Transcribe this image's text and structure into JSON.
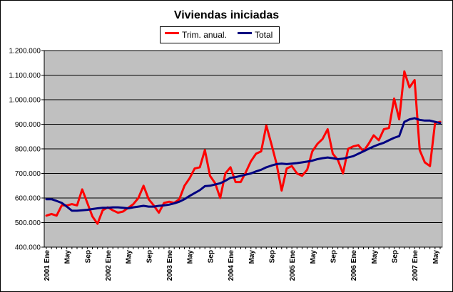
{
  "chart_data": {
    "type": "line",
    "title": "Viviendas iniciadas",
    "xlabel": "",
    "ylabel": "",
    "ylim": [
      400000,
      1200000
    ],
    "yticks": [
      "400.000",
      "500.000",
      "600.000",
      "700.000",
      "800.000",
      "900.000",
      "1.000.000",
      "1.100.000",
      "1.200.000"
    ],
    "ytick_values": [
      400000,
      500000,
      600000,
      700000,
      800000,
      900000,
      1000000,
      1100000,
      1200000
    ],
    "x_start": "2001-01",
    "x_count": 78,
    "x_tick_labels": [
      {
        "index": 0,
        "label": "2001 Ene"
      },
      {
        "index": 4,
        "label": "May"
      },
      {
        "index": 8,
        "label": "Sep"
      },
      {
        "index": 12,
        "label": "2002 Ene"
      },
      {
        "index": 16,
        "label": "May"
      },
      {
        "index": 20,
        "label": "Sep"
      },
      {
        "index": 24,
        "label": "2003 Ene"
      },
      {
        "index": 28,
        "label": "May"
      },
      {
        "index": 32,
        "label": "Sep"
      },
      {
        "index": 36,
        "label": "2004 Ene"
      },
      {
        "index": 40,
        "label": "May"
      },
      {
        "index": 44,
        "label": "Sep"
      },
      {
        "index": 48,
        "label": "2005 Ene"
      },
      {
        "index": 52,
        "label": "May"
      },
      {
        "index": 56,
        "label": "Sep"
      },
      {
        "index": 60,
        "label": "2006 Ene"
      },
      {
        "index": 64,
        "label": "May"
      },
      {
        "index": 68,
        "label": "Sep"
      },
      {
        "index": 72,
        "label": "2007 Ene"
      },
      {
        "index": 76,
        "label": "May"
      }
    ],
    "background_color": "#c0c0c0",
    "series": [
      {
        "name": "Trim. anual.",
        "color": "#ff0000",
        "values": [
          528000,
          535000,
          528000,
          570000,
          570000,
          575000,
          570000,
          635000,
          580000,
          525000,
          495000,
          550000,
          562000,
          550000,
          540000,
          545000,
          560000,
          575000,
          600000,
          650000,
          595000,
          570000,
          540000,
          580000,
          585000,
          580000,
          595000,
          650000,
          680000,
          720000,
          725000,
          795000,
          690000,
          660000,
          600000,
          700000,
          725000,
          665000,
          665000,
          705000,
          750000,
          780000,
          790000,
          895000,
          820000,
          740000,
          630000,
          720000,
          730000,
          700000,
          690000,
          715000,
          790000,
          820000,
          840000,
          880000,
          780000,
          755000,
          700000,
          800000,
          810000,
          815000,
          790000,
          820000,
          855000,
          835000,
          880000,
          885000,
          1005000,
          920000,
          1115000,
          1050000,
          1080000,
          795000,
          745000,
          730000,
          905000,
          910000
        ]
      },
      {
        "name": "Total",
        "color": "#000080",
        "values": [
          595000,
          595000,
          588000,
          580000,
          565000,
          548000,
          548000,
          550000,
          552000,
          555000,
          558000,
          560000,
          560000,
          562000,
          562000,
          560000,
          558000,
          562000,
          565000,
          568000,
          565000,
          565000,
          568000,
          570000,
          573000,
          578000,
          585000,
          595000,
          608000,
          620000,
          632000,
          648000,
          650000,
          655000,
          660000,
          670000,
          682000,
          685000,
          690000,
          695000,
          700000,
          708000,
          715000,
          725000,
          732000,
          738000,
          740000,
          738000,
          740000,
          742000,
          745000,
          748000,
          752000,
          758000,
          762000,
          765000,
          762000,
          758000,
          760000,
          765000,
          770000,
          780000,
          790000,
          800000,
          810000,
          818000,
          825000,
          835000,
          845000,
          852000,
          910000,
          920000,
          925000,
          918000,
          915000,
          915000,
          910000,
          905000
        ]
      }
    ]
  },
  "legend": {
    "items": [
      {
        "label": "Trim. anual."
      },
      {
        "label": "Total"
      }
    ]
  }
}
